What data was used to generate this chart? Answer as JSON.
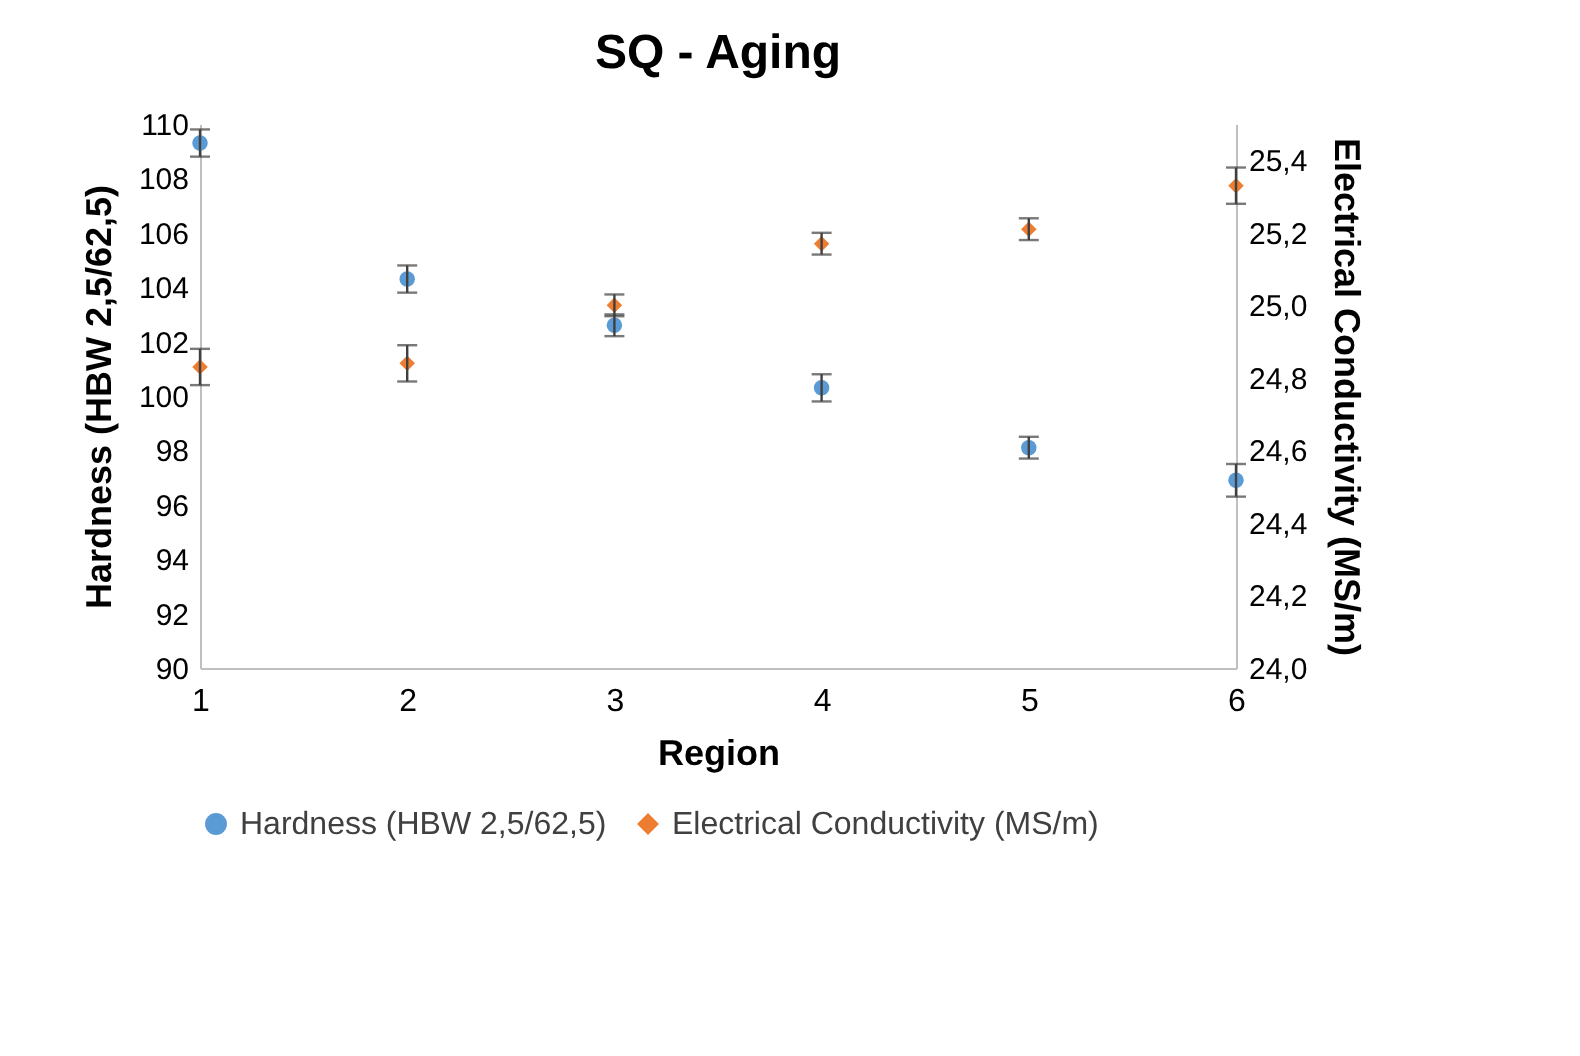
{
  "chart_data": {
    "type": "scatter",
    "title": "SQ - Aging",
    "xlabel": "Region",
    "ylabel": "Hardness (HBW 2,5/62,5)",
    "y2label": "Electrical Conductivity (MS/m)",
    "x": [
      1,
      2,
      3,
      4,
      5,
      6
    ],
    "series": [
      {
        "name": "Hardness (HBW 2,5/62,5)",
        "color": "#5b9bd5",
        "marker": "circle",
        "values": [
          109.3,
          104.3,
          102.6,
          100.3,
          98.1,
          96.9
        ],
        "errors": [
          0.5,
          0.5,
          0.4,
          0.5,
          0.4,
          0.6
        ]
      },
      {
        "name": "Electrical Conductivity (MS/m)",
        "color": "#ed7d31",
        "marker": "diamond",
        "axis": "y2",
        "values": [
          24.83,
          24.84,
          25.0,
          25.17,
          25.21,
          25.33
        ],
        "errors": [
          0.05,
          0.05,
          0.03,
          0.03,
          0.03,
          0.05
        ]
      }
    ],
    "xlim": [
      1,
      6
    ],
    "xticks": [
      1,
      2,
      3,
      4,
      5,
      6
    ],
    "ylim": [
      90,
      110
    ],
    "yticks": [
      90,
      92,
      94,
      96,
      98,
      100,
      102,
      104,
      106,
      108,
      110
    ],
    "y2lim": [
      24,
      25.5
    ],
    "y2ticks": [
      {
        "value": 24,
        "label": "24,0"
      },
      {
        "value": 24.2,
        "label": "24,2"
      },
      {
        "value": 24.4,
        "label": "24,4"
      },
      {
        "value": 24.6,
        "label": "24,6"
      },
      {
        "value": 24.8,
        "label": "24,8"
      },
      {
        "value": 25,
        "label": "25,0"
      },
      {
        "value": 25.2,
        "label": "25,2"
      },
      {
        "value": 25.4,
        "label": "25,4"
      }
    ],
    "grid": false,
    "legend": "bottom"
  }
}
